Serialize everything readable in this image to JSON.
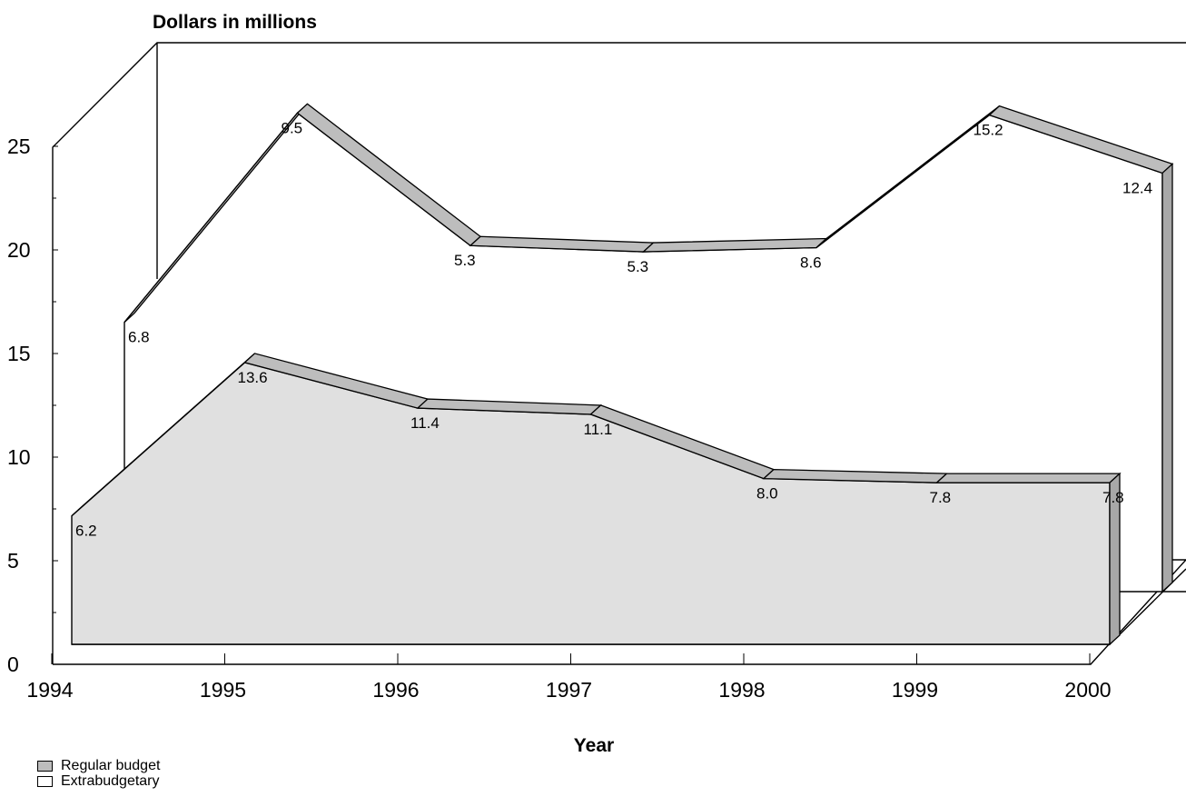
{
  "chart_data": {
    "type": "area",
    "title": "Dollars in millions",
    "xlabel": "Year",
    "ylabel": "Dollars in millions",
    "ylim": [
      0,
      25
    ],
    "yticks": [
      "0",
      "5",
      "10",
      "15",
      "20",
      "25"
    ],
    "categories": [
      "1994",
      "1995",
      "1996",
      "1997",
      "1998",
      "1999",
      "2000"
    ],
    "stacked": true,
    "series": [
      {
        "name": "Regular budget",
        "values": [
          6.2,
          13.6,
          11.4,
          11.1,
          8.0,
          7.8,
          7.8
        ],
        "labels": [
          "6.2",
          "13.6",
          "11.4",
          "11.1",
          "8.0",
          "7.8",
          "7.8"
        ],
        "color": "#e0e0e0"
      },
      {
        "name": "Extrabudgetary",
        "values": [
          6.8,
          9.5,
          5.3,
          5.3,
          8.6,
          15.2,
          12.4
        ],
        "labels": [
          "6.8",
          "9.5",
          "5.3",
          "5.3",
          "8.6",
          "15.2",
          "12.4"
        ],
        "color": "#ffffff"
      }
    ],
    "legend": "bottom-left",
    "grid": false
  },
  "colors": {
    "ribbon": "#bdbdbd",
    "ribbon_side": "#a8a8a8",
    "front_fill": "#e0e0e0",
    "back_fill": "#ffffff"
  }
}
